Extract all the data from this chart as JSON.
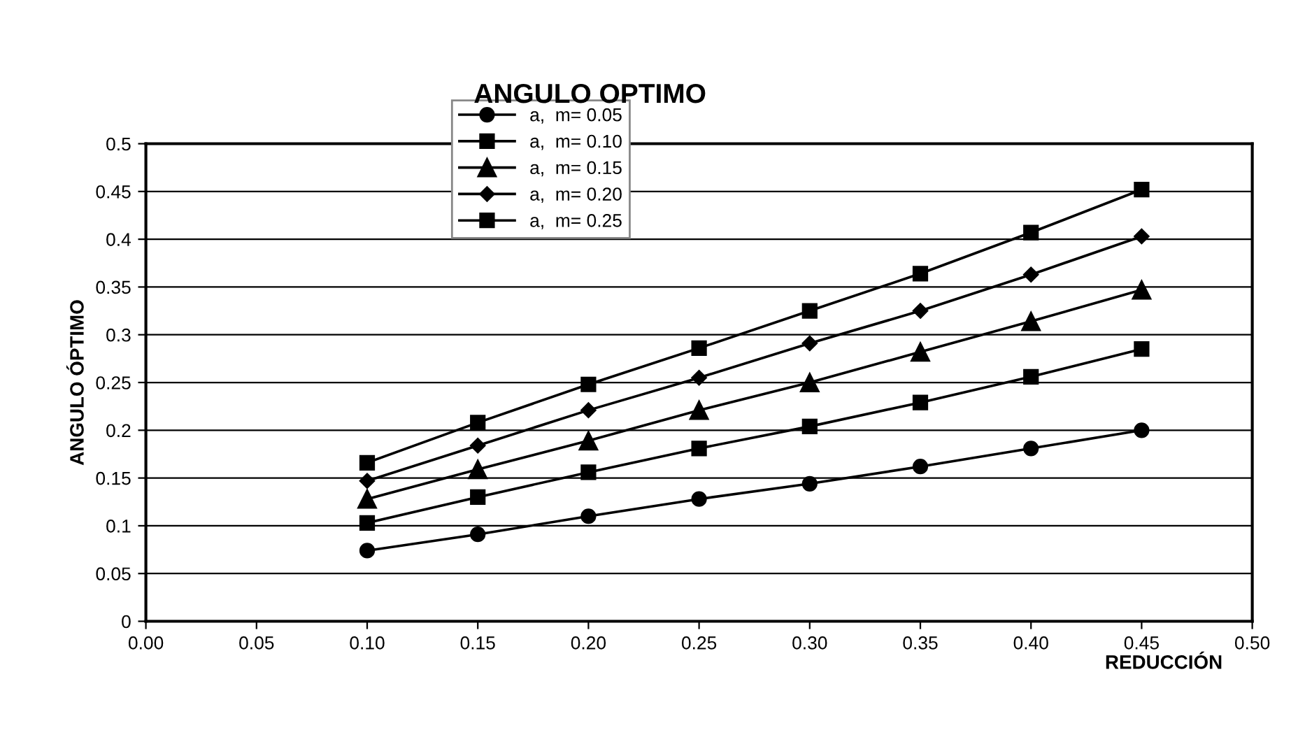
{
  "chart_data": {
    "type": "line",
    "title": "ANGULO OPTIMO",
    "xlabel": "REDUCCIÓN",
    "ylabel": "ANGULO ÓPTIMO",
    "x": [
      0.1,
      0.15,
      0.2,
      0.25,
      0.3,
      0.35,
      0.4,
      0.45
    ],
    "series": [
      {
        "name": "a,  m= 0.05",
        "color": "#000000",
        "marker": "circle",
        "values": [
          0.074,
          0.091,
          0.11,
          0.128,
          0.144,
          0.162,
          0.181,
          0.2
        ]
      },
      {
        "name": "a,  m= 0.10",
        "color": "#000000",
        "marker": "square",
        "values": [
          0.103,
          0.13,
          0.156,
          0.181,
          0.204,
          0.229,
          0.256,
          0.285
        ]
      },
      {
        "name": "a,  m= 0.15",
        "color": "#000000",
        "marker": "triangle",
        "values": [
          0.128,
          0.159,
          0.189,
          0.221,
          0.25,
          0.282,
          0.314,
          0.347
        ]
      },
      {
        "name": "a,  m= 0.20",
        "color": "#000000",
        "marker": "diamond",
        "values": [
          0.147,
          0.184,
          0.221,
          0.255,
          0.291,
          0.325,
          0.363,
          0.403
        ]
      },
      {
        "name": "a,  m= 0.25",
        "color": "#000000",
        "marker": "square",
        "values": [
          0.166,
          0.208,
          0.248,
          0.286,
          0.325,
          0.364,
          0.407,
          0.452
        ]
      }
    ],
    "xlim": [
      0,
      0.5
    ],
    "xticks": [
      {
        "value": 0,
        "label": "0.00"
      },
      {
        "value": 0.05,
        "label": "0.05"
      },
      {
        "value": 0.1,
        "label": "0.10"
      },
      {
        "value": 0.15,
        "label": "0.15"
      },
      {
        "value": 0.2,
        "label": "0.20"
      },
      {
        "value": 0.25,
        "label": "0.25"
      },
      {
        "value": 0.3,
        "label": "0.30"
      },
      {
        "value": 0.35,
        "label": "0.35"
      },
      {
        "value": 0.4,
        "label": "0.40"
      },
      {
        "value": 0.45,
        "label": "0.45"
      },
      {
        "value": 0.5,
        "label": "0.50"
      }
    ],
    "ylim": [
      0,
      0.5
    ],
    "yticks": [
      0,
      0.05,
      0.1,
      0.15,
      0.2,
      0.25,
      0.3,
      0.35,
      0.4,
      0.45,
      0.5
    ],
    "grid": "y",
    "legend": "top",
    "line_style": "solid"
  }
}
